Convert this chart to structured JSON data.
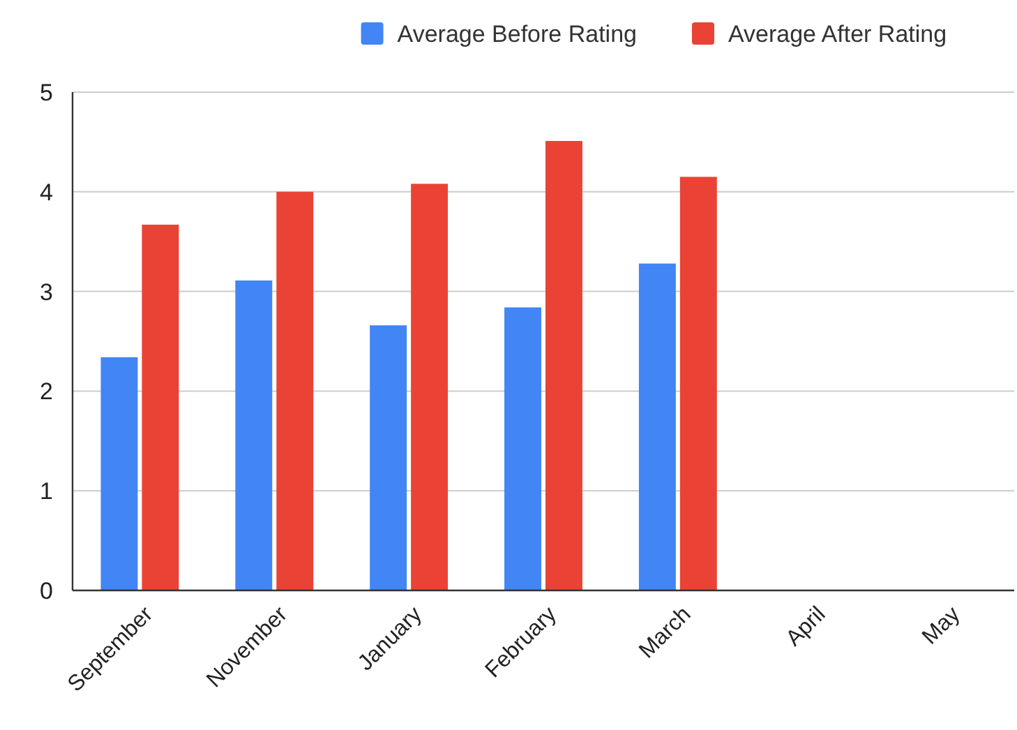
{
  "chart_data": {
    "type": "bar",
    "categories": [
      "September",
      "November",
      "January",
      "February",
      "March",
      "April",
      "May"
    ],
    "series": [
      {
        "name": "Average Before Rating",
        "color": "#4285f4",
        "values": [
          2.34,
          3.11,
          2.66,
          2.84,
          3.28,
          null,
          null
        ]
      },
      {
        "name": "Average After Rating",
        "color": "#ea4335",
        "values": [
          3.67,
          4.0,
          4.08,
          4.51,
          4.15,
          null,
          null
        ]
      }
    ],
    "ylim": [
      0,
      5
    ],
    "yticks": [
      0,
      1,
      2,
      3,
      4,
      5
    ],
    "grid": "y",
    "legend": "top right"
  }
}
